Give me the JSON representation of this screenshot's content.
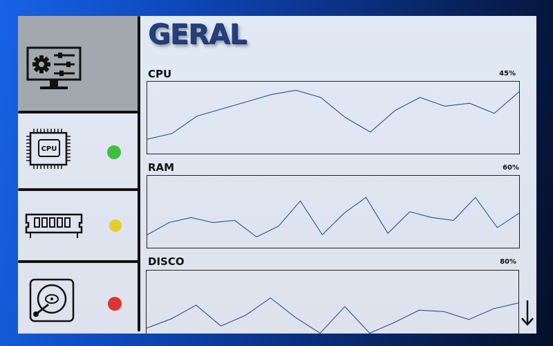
{
  "header": {
    "title": "GERAL"
  },
  "sidebar": {
    "items": [
      {
        "id": "general",
        "icon": "settings-monitor-icon",
        "active": true
      },
      {
        "id": "cpu",
        "icon": "cpu-chip-icon",
        "chip_label": "CPU",
        "status": "green",
        "status_color": "#3fbf3f"
      },
      {
        "id": "ram",
        "icon": "ram-module-icon",
        "status": "yellow",
        "status_color": "#e2cf2f"
      },
      {
        "id": "disk",
        "icon": "hard-disk-icon",
        "status": "red",
        "status_color": "#dd3434"
      }
    ]
  },
  "charts": [
    {
      "label": "CPU",
      "percent": "45%",
      "points": [
        20,
        28,
        52,
        62,
        72,
        82,
        88,
        78,
        50,
        30,
        60,
        78,
        66,
        70,
        56,
        86
      ]
    },
    {
      "label": "RAM",
      "percent": "60%",
      "points": [
        18,
        35,
        42,
        35,
        38,
        15,
        30,
        65,
        18,
        48,
        70,
        20,
        50,
        42,
        38,
        70,
        28,
        48
      ]
    },
    {
      "label": "DISCO",
      "percent": "80%",
      "points": [
        20,
        33,
        52,
        23,
        38,
        62,
        35,
        13,
        50,
        13,
        28,
        45,
        43,
        32,
        47,
        55
      ]
    }
  ],
  "scroll": {
    "icon": "arrow-down-icon"
  },
  "colors": {
    "line": "#2b4f8f",
    "title": "#233f7c",
    "accent_bg": "#a3a8af"
  }
}
